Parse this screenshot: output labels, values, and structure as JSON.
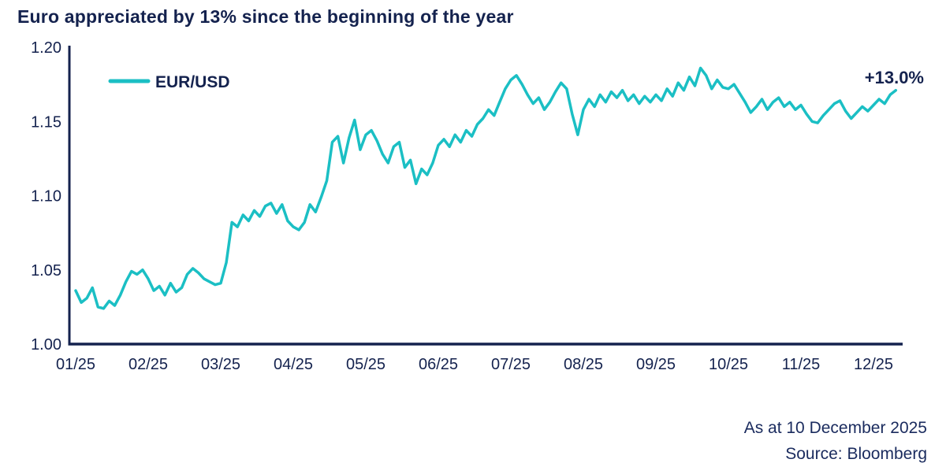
{
  "header": {
    "title": "Euro appreciated by 13% since the beginning of the year"
  },
  "footer": {
    "as_at": "As at 10 December 2025",
    "source": "Source: Bloomberg"
  },
  "chart_data": {
    "type": "line",
    "title": "Euro appreciated by 13% since the beginning of the year",
    "xlabel": "",
    "ylabel": "",
    "ylim": [
      1.0,
      1.2
    ],
    "grid": false,
    "legend": {
      "label": "EUR/USD",
      "position": "top-left"
    },
    "annotation": "+13.0%",
    "axis_color": "#14224e",
    "x_tick_labels": [
      "01/25",
      "02/25",
      "03/25",
      "04/25",
      "05/25",
      "06/25",
      "07/25",
      "08/25",
      "09/25",
      "10/25",
      "11/25",
      "12/25"
    ],
    "y_ticks": [
      {
        "label": "1.00",
        "value": 1.0
      },
      {
        "label": "1.05",
        "value": 1.05
      },
      {
        "label": "1.10",
        "value": 1.1
      },
      {
        "label": "1.15",
        "value": 1.15
      },
      {
        "label": "1.20",
        "value": 1.2
      }
    ],
    "series": [
      {
        "name": "EUR/USD",
        "color": "#1bbfc4",
        "points_per_month": 13,
        "values": [
          1.036,
          1.028,
          1.031,
          1.038,
          1.025,
          1.024,
          1.029,
          1.026,
          1.033,
          1.042,
          1.049,
          1.047,
          1.05,
          1.044,
          1.036,
          1.039,
          1.033,
          1.041,
          1.035,
          1.038,
          1.047,
          1.051,
          1.048,
          1.044,
          1.042,
          1.04,
          1.041,
          1.055,
          1.082,
          1.079,
          1.087,
          1.083,
          1.09,
          1.086,
          1.093,
          1.095,
          1.088,
          1.094,
          1.083,
          1.079,
          1.077,
          1.082,
          1.094,
          1.089,
          1.099,
          1.11,
          1.136,
          1.14,
          1.122,
          1.139,
          1.151,
          1.131,
          1.141,
          1.144,
          1.137,
          1.128,
          1.122,
          1.133,
          1.136,
          1.119,
          1.124,
          1.108,
          1.118,
          1.114,
          1.122,
          1.134,
          1.138,
          1.133,
          1.141,
          1.136,
          1.144,
          1.14,
          1.148,
          1.152,
          1.158,
          1.154,
          1.163,
          1.172,
          1.178,
          1.181,
          1.175,
          1.168,
          1.162,
          1.166,
          1.158,
          1.163,
          1.17,
          1.176,
          1.172,
          1.155,
          1.141,
          1.158,
          1.165,
          1.16,
          1.168,
          1.163,
          1.17,
          1.166,
          1.171,
          1.164,
          1.168,
          1.162,
          1.167,
          1.163,
          1.168,
          1.164,
          1.172,
          1.167,
          1.176,
          1.171,
          1.18,
          1.174,
          1.186,
          1.181,
          1.172,
          1.178,
          1.173,
          1.172,
          1.175,
          1.169,
          1.163,
          1.156,
          1.16,
          1.165,
          1.158,
          1.163,
          1.166,
          1.16,
          1.163,
          1.158,
          1.161,
          1.155,
          1.15,
          1.149,
          1.154,
          1.158,
          1.162,
          1.164,
          1.157,
          1.152,
          1.156,
          1.16,
          1.157,
          1.161,
          1.165,
          1.162,
          1.168,
          1.171
        ]
      }
    ]
  }
}
